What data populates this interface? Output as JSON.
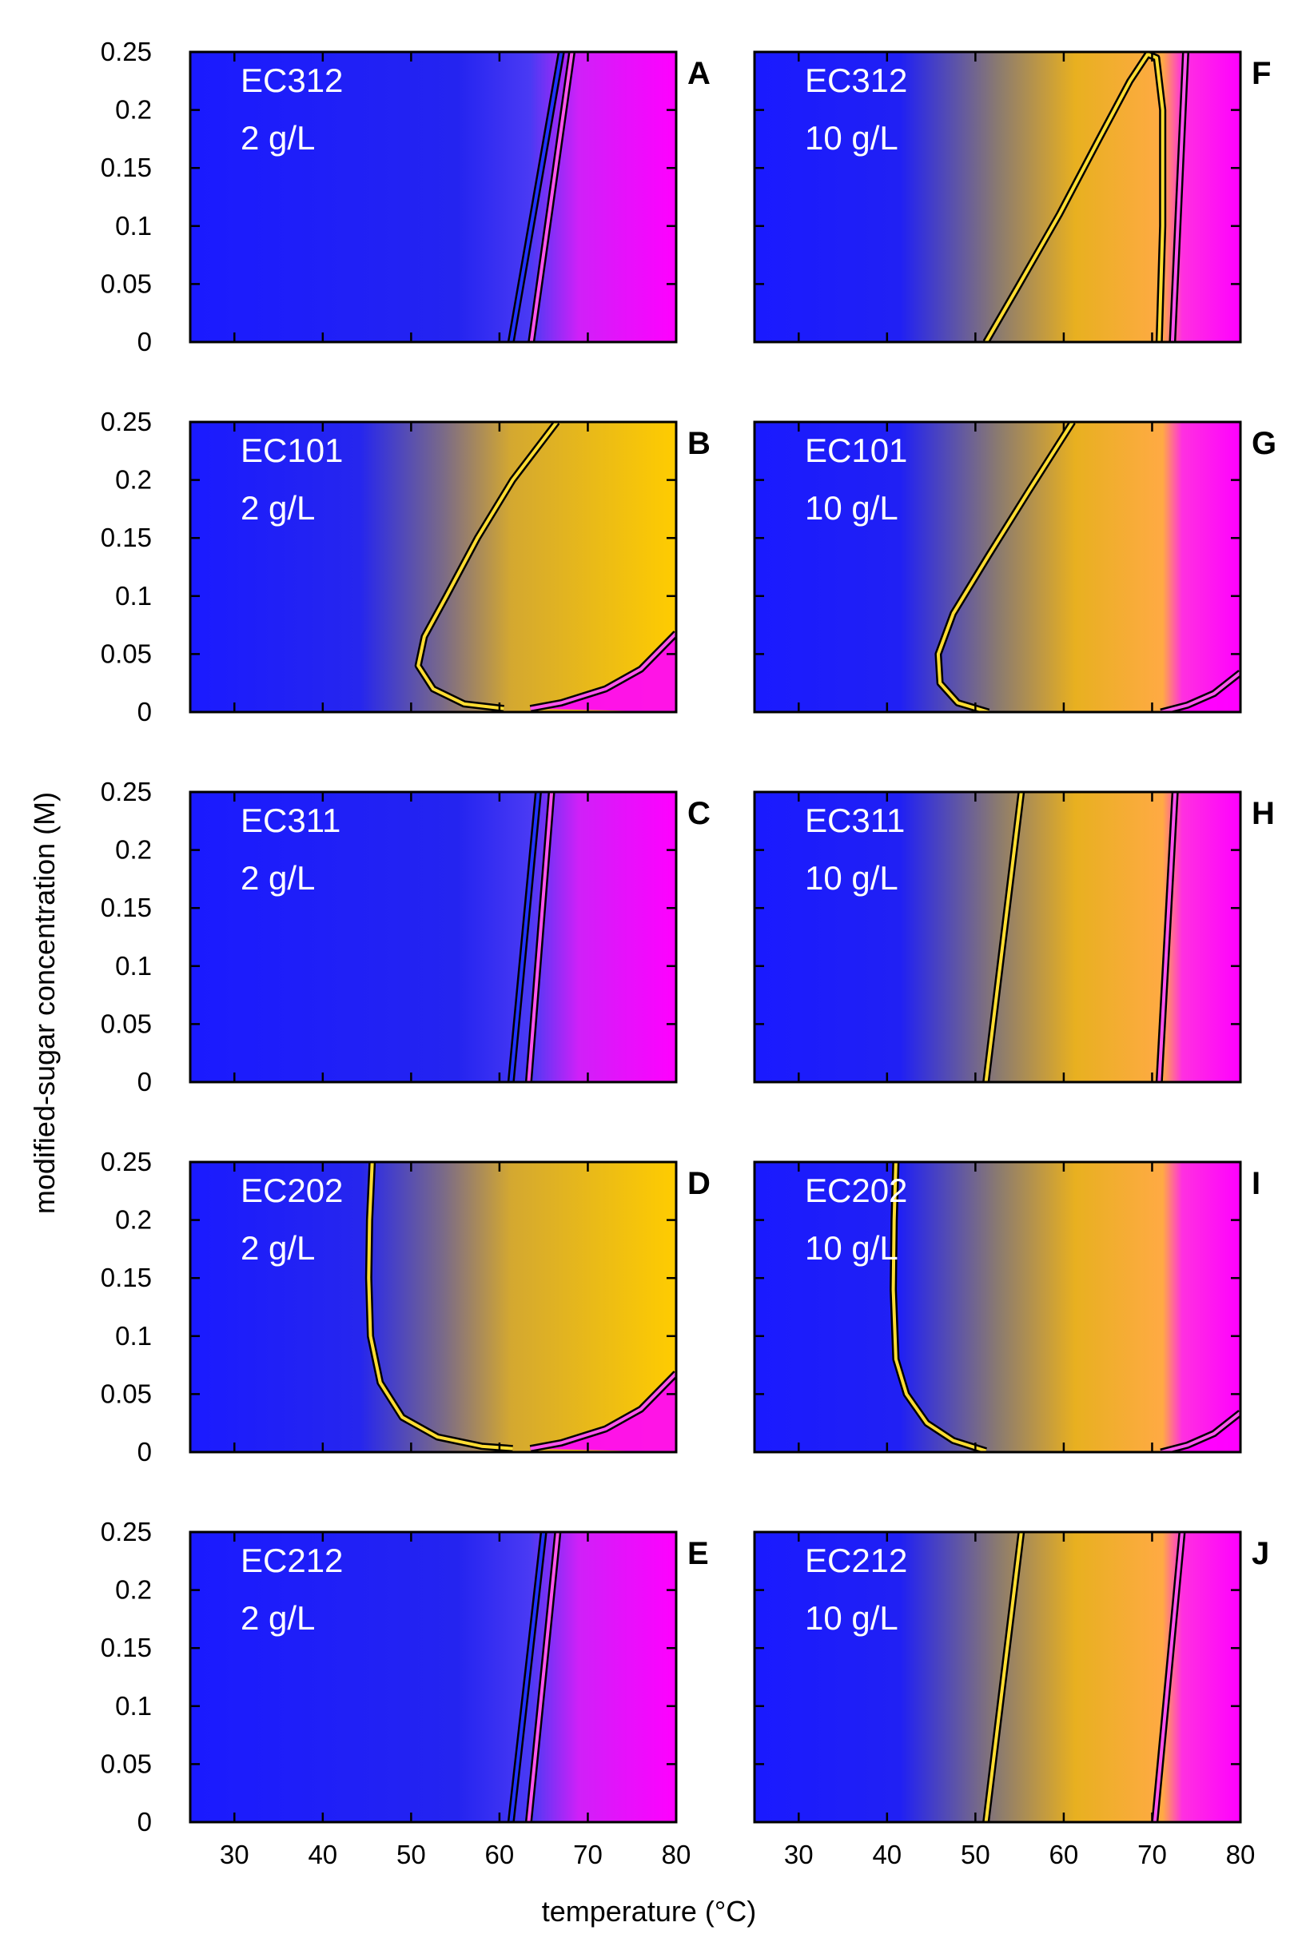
{
  "chart_data": {
    "type": "heatmap",
    "xlabel": "temperature (°C)",
    "ylabel": "modified-sugar concentration (M)",
    "xlim": [
      25,
      80
    ],
    "ylim": [
      0,
      0.25
    ],
    "x_ticks": [
      "30",
      "40",
      "50",
      "60",
      "70",
      "80"
    ],
    "y_ticks": [
      "0",
      "0.05",
      "0.1",
      "0.15",
      "0.2",
      "0.25"
    ],
    "colors": {
      "blue": "#1a1aff",
      "yellow": "#ffcc00",
      "magenta": "#ff00ff",
      "gold_line": "#ffdd33",
      "pink_line": "#ff55ee"
    },
    "panels": [
      {
        "letter": "A",
        "name": "EC312",
        "conc": "2 g/L",
        "col": 0,
        "row": 0,
        "blue_boundary": [
          [
            61.3,
            0
          ],
          [
            67.0,
            0.25
          ]
        ],
        "magenta_boundary": [
          [
            63.6,
            0
          ],
          [
            68.2,
            0.25
          ]
        ]
      },
      {
        "letter": "B",
        "name": "EC101",
        "conc": "2 g/L",
        "col": 0,
        "row": 1,
        "yellow_boundary": [
          [
            60.5,
            0.003
          ],
          [
            56,
            0.007
          ],
          [
            52.5,
            0.02
          ],
          [
            50.8,
            0.04
          ],
          [
            51.5,
            0.065
          ],
          [
            54,
            0.1
          ],
          [
            57.5,
            0.15
          ],
          [
            61.5,
            0.2
          ],
          [
            66.5,
            0.25
          ]
        ],
        "magenta_boundary": [
          [
            63.5,
            0.003
          ],
          [
            67,
            0.008
          ],
          [
            72,
            0.02
          ],
          [
            76,
            0.037
          ],
          [
            80,
            0.068
          ]
        ]
      },
      {
        "letter": "C",
        "name": "EC311",
        "conc": "2 g/L",
        "col": 0,
        "row": 2,
        "blue_boundary": [
          [
            61.3,
            0
          ],
          [
            64.4,
            0.25
          ]
        ],
        "magenta_boundary": [
          [
            63.3,
            0
          ],
          [
            65.9,
            0.25
          ]
        ]
      },
      {
        "letter": "D",
        "name": "EC202",
        "conc": "2 g/L",
        "col": 0,
        "row": 3,
        "yellow_boundary": [
          [
            45.6,
            0.25
          ],
          [
            45.3,
            0.2
          ],
          [
            45.2,
            0.15
          ],
          [
            45.4,
            0.1
          ],
          [
            46.5,
            0.06
          ],
          [
            49,
            0.03
          ],
          [
            53,
            0.013
          ],
          [
            58,
            0.005
          ],
          [
            61.5,
            0.003
          ]
        ],
        "magenta_boundary": [
          [
            63.5,
            0.003
          ],
          [
            67,
            0.008
          ],
          [
            72,
            0.02
          ],
          [
            76,
            0.037
          ],
          [
            80,
            0.068
          ]
        ]
      },
      {
        "letter": "E",
        "name": "EC212",
        "conc": "2 g/L",
        "col": 0,
        "row": 4,
        "blue_boundary": [
          [
            61.3,
            0
          ],
          [
            65.0,
            0.25
          ]
        ],
        "magenta_boundary": [
          [
            63.3,
            0
          ],
          [
            66.6,
            0.25
          ]
        ]
      },
      {
        "letter": "F",
        "name": "EC312",
        "conc": "10 g/L",
        "col": 1,
        "row": 0,
        "yellow_boundary": [
          [
            51.2,
            0
          ],
          [
            55,
            0.05
          ],
          [
            59.5,
            0.11
          ],
          [
            64,
            0.175
          ],
          [
            67.5,
            0.225
          ],
          [
            69.5,
            0.248
          ],
          [
            70.5,
            0.245
          ],
          [
            71.2,
            0.2
          ],
          [
            71.2,
            0.1
          ],
          [
            70.8,
            0
          ]
        ],
        "magenta_boundary": [
          [
            72.3,
            0
          ],
          [
            73.8,
            0.25
          ]
        ]
      },
      {
        "letter": "G",
        "name": "EC101",
        "conc": "10 g/L",
        "col": 1,
        "row": 1,
        "yellow_boundary": [
          [
            51.5,
            0
          ],
          [
            48,
            0.008
          ],
          [
            46,
            0.025
          ],
          [
            45.8,
            0.05
          ],
          [
            47.5,
            0.085
          ],
          [
            51.5,
            0.135
          ],
          [
            56,
            0.19
          ],
          [
            61,
            0.25
          ]
        ],
        "magenta_boundary": [
          [
            71,
            0
          ],
          [
            74,
            0.006
          ],
          [
            77,
            0.016
          ],
          [
            80,
            0.034
          ]
        ]
      },
      {
        "letter": "H",
        "name": "EC311",
        "conc": "10 g/L",
        "col": 1,
        "row": 2,
        "yellow_boundary": [
          [
            51.2,
            0
          ],
          [
            55.2,
            0.25
          ]
        ],
        "magenta_boundary": [
          [
            70.8,
            0
          ],
          [
            72.6,
            0.25
          ]
        ]
      },
      {
        "letter": "I",
        "name": "EC202",
        "conc": "10 g/L",
        "col": 1,
        "row": 3,
        "yellow_boundary": [
          [
            41.0,
            0.25
          ],
          [
            40.8,
            0.2
          ],
          [
            40.7,
            0.14
          ],
          [
            41.0,
            0.08
          ],
          [
            42.2,
            0.05
          ],
          [
            44.5,
            0.025
          ],
          [
            47.5,
            0.01
          ],
          [
            51.2,
            0.001
          ]
        ],
        "magenta_boundary": [
          [
            71,
            0
          ],
          [
            74,
            0.006
          ],
          [
            77,
            0.016
          ],
          [
            80,
            0.034
          ]
        ]
      },
      {
        "letter": "J",
        "name": "EC212",
        "conc": "10 g/L",
        "col": 1,
        "row": 4,
        "yellow_boundary": [
          [
            51.2,
            0
          ],
          [
            55.2,
            0.25
          ]
        ],
        "magenta_boundary": [
          [
            70.3,
            0
          ],
          [
            73.4,
            0.25
          ]
        ]
      }
    ]
  }
}
